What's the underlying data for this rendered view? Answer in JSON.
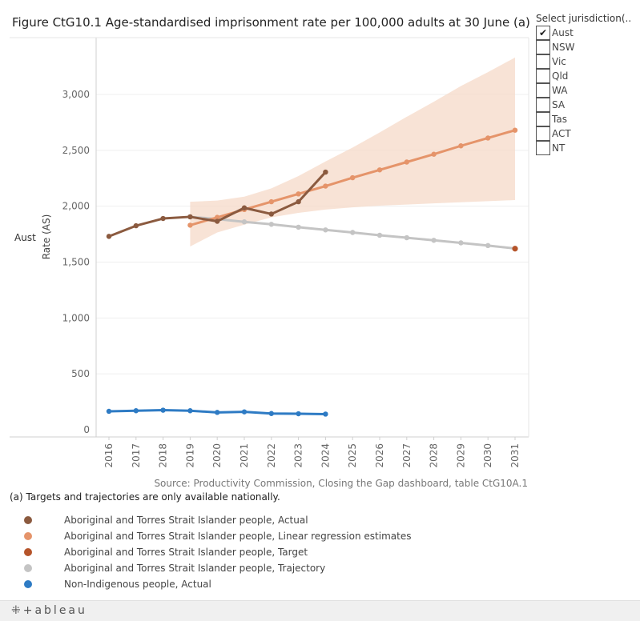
{
  "title": "Figure CtG10.1 Age-standardised imprisonment rate per 100,000 adults at 30 June (a)",
  "filter": {
    "title": "Select jurisdiction(..",
    "options": [
      {
        "label": "Aust",
        "checked": true
      },
      {
        "label": "NSW",
        "checked": false
      },
      {
        "label": "Vic",
        "checked": false
      },
      {
        "label": "Qld",
        "checked": false
      },
      {
        "label": "WA",
        "checked": false
      },
      {
        "label": "SA",
        "checked": false
      },
      {
        "label": "Tas",
        "checked": false
      },
      {
        "label": "ACT",
        "checked": false
      },
      {
        "label": "NT",
        "checked": false
      }
    ],
    "check_mark": "✔"
  },
  "row_label": "Aust",
  "source": "Source: Productivity Commission, Closing the Gap dashboard, table CtG10A.1",
  "footnote": "(a) Targets and trajectories are only available nationally.",
  "brand": "⁜+ableau",
  "chart_data": {
    "type": "line",
    "title": "Figure CtG10.1 Age-standardised imprisonment rate per 100,000 adults at 30 June (a)",
    "xlabel": "",
    "ylabel": "Rate (AS)",
    "ylim": [
      0,
      3500
    ],
    "yticks": [
      0,
      500,
      1000,
      1500,
      2000,
      2500,
      3000
    ],
    "ytick_labels": [
      "0",
      "500",
      "1,000",
      "1,500",
      "2,000",
      "2,500",
      "3,000"
    ],
    "categories": [
      "2016",
      "2017",
      "2018",
      "2019",
      "2020",
      "2021",
      "2022",
      "2023",
      "2024",
      "2025",
      "2026",
      "2027",
      "2028",
      "2029",
      "2030",
      "2031"
    ],
    "series": [
      {
        "name": "Aboriginal and Torres Strait Islander people, Actual",
        "color": "#8B5A3F",
        "x": [
          "2016",
          "2017",
          "2018",
          "2019",
          "2020",
          "2021",
          "2022",
          "2023",
          "2024"
        ],
        "values": [
          1730,
          1825,
          1890,
          1905,
          1865,
          1985,
          1930,
          2040,
          2305
        ]
      },
      {
        "name": "Aboriginal and Torres Strait Islander people, Linear regression estimates",
        "color": "#E5946A",
        "x": [
          "2019",
          "2020",
          "2021",
          "2022",
          "2023",
          "2024",
          "2025",
          "2026",
          "2027",
          "2028",
          "2029",
          "2030",
          "2031"
        ],
        "values": [
          1830,
          1900,
          1970,
          2040,
          2110,
          2180,
          2255,
          2325,
          2395,
          2465,
          2540,
          2610,
          2680
        ]
      },
      {
        "name": "Aboriginal and Torres Strait Islander people, Target",
        "color": "#B5542A",
        "x": [
          "2031"
        ],
        "values": [
          1620
        ]
      },
      {
        "name": "Aboriginal and Torres Strait Islander people, Trajectory",
        "color": "#C4C4C4",
        "x": [
          "2019",
          "2020",
          "2021",
          "2022",
          "2023",
          "2024",
          "2025",
          "2026",
          "2027",
          "2028",
          "2029",
          "2030",
          "2031"
        ],
        "values": [
          1905,
          1885,
          1860,
          1838,
          1812,
          1788,
          1765,
          1740,
          1718,
          1695,
          1672,
          1648,
          1622
        ]
      },
      {
        "name": "Non-Indigenous people, Actual",
        "color": "#2E7BC4",
        "x": [
          "2016",
          "2017",
          "2018",
          "2019",
          "2020",
          "2021",
          "2022",
          "2023",
          "2024"
        ],
        "values": [
          165,
          170,
          175,
          170,
          155,
          160,
          145,
          143,
          140
        ]
      }
    ],
    "confidence_band": {
      "name": "Linear regression estimates interval",
      "color": "#F5D9C8",
      "x": [
        "2019",
        "2020",
        "2021",
        "2022",
        "2023",
        "2024",
        "2025",
        "2026",
        "2027",
        "2028",
        "2029",
        "2030",
        "2031"
      ],
      "lower": [
        1640,
        1765,
        1835,
        1900,
        1940,
        1970,
        1990,
        2005,
        2015,
        2025,
        2035,
        2045,
        2055
      ],
      "upper": [
        2040,
        2050,
        2085,
        2160,
        2270,
        2400,
        2525,
        2660,
        2800,
        2935,
        3075,
        3200,
        3330
      ]
    }
  }
}
